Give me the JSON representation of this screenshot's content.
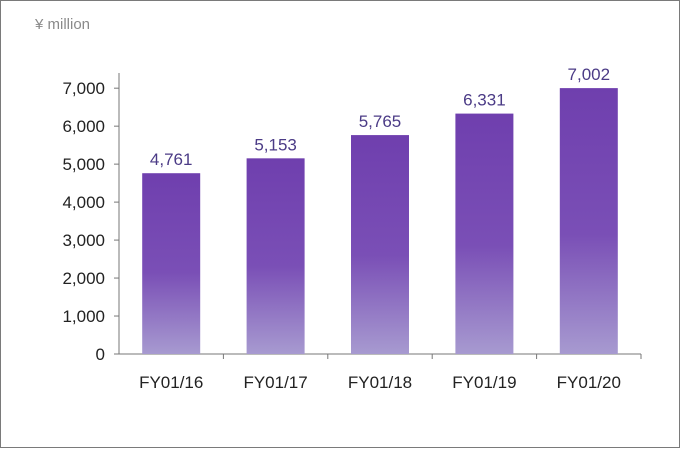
{
  "chart_data": {
    "type": "bar",
    "title": "",
    "unit_label": "¥ million",
    "xlabel": "",
    "ylabel": "",
    "categories": [
      "FY01/16",
      "FY01/17",
      "FY01/18",
      "FY01/19",
      "FY01/20"
    ],
    "values": [
      4761,
      5153,
      5765,
      6331,
      7002
    ],
    "value_labels": [
      "4,761",
      "5,153",
      "5,765",
      "6,331",
      "7,002"
    ],
    "ylim": [
      0,
      7000
    ],
    "yticks": [
      0,
      1000,
      2000,
      3000,
      4000,
      5000,
      6000,
      7000
    ],
    "ytick_labels": [
      "0",
      "1,000",
      "2,000",
      "3,000",
      "4,000",
      "5,000",
      "6,000",
      "7,000"
    ],
    "grid": false,
    "legend": "none",
    "colors": {
      "bar_top": "#6f3fae",
      "bar_mid": "#7a4fb6",
      "bar_bottom": "#a79ad0",
      "value_label": "#4b3b86",
      "axis": "#777777"
    }
  }
}
